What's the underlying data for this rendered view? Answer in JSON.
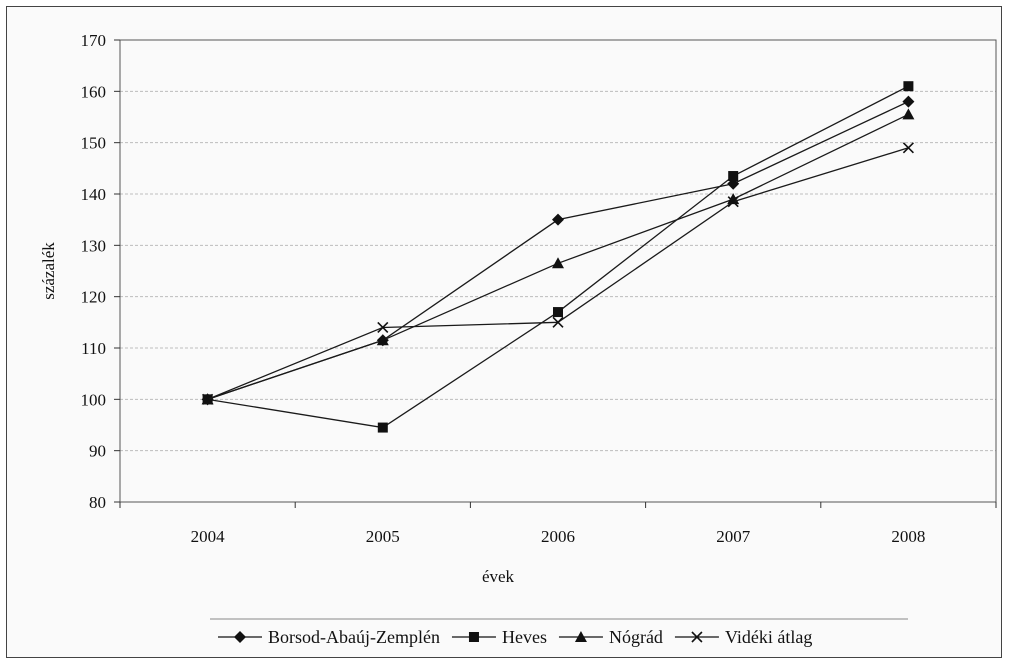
{
  "chart_data": {
    "type": "line",
    "xlabel": "évek",
    "ylabel": "százalék",
    "categories": [
      "2004",
      "2005",
      "2006",
      "2007",
      "2008"
    ],
    "ylim": [
      80,
      170
    ],
    "yticks": [
      80,
      90,
      100,
      110,
      120,
      130,
      140,
      150,
      160,
      170
    ],
    "grid": "horizontal",
    "legend_position": "bottom",
    "series": [
      {
        "name": "Borsod-Abaúj-Zemplén",
        "marker": "diamond",
        "values": [
          100,
          111.5,
          135,
          142,
          158
        ]
      },
      {
        "name": "Heves",
        "marker": "square",
        "values": [
          100,
          94.5,
          117,
          143.5,
          161
        ]
      },
      {
        "name": "Nógrád",
        "marker": "triangle",
        "values": [
          100,
          111.5,
          126.5,
          139,
          155.5
        ]
      },
      {
        "name": "Vidéki átlag",
        "marker": "x",
        "values": [
          100,
          114,
          115,
          138.5,
          149
        ]
      }
    ]
  }
}
